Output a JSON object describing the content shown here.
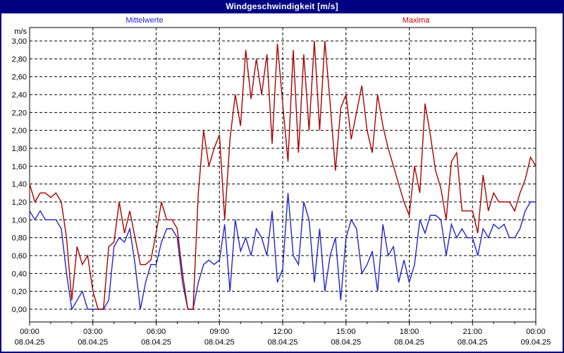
{
  "window": {
    "title": "Windgeschwindigkeit [m/s]"
  },
  "legend": {
    "items": [
      {
        "label": "Mittelwerte",
        "color": "#2323CC"
      },
      {
        "label": "Maxima",
        "color": "#C00000"
      }
    ]
  },
  "colors": {
    "titlebar_bg": "#000082",
    "titlebar_text": "#FFFFFF",
    "frame": "#000082",
    "grid": "#000000",
    "plot_border": "#000000",
    "background": "#FFFFFF"
  },
  "chart_data": {
    "type": "line",
    "title": "Windgeschwindigkeit [m/s]",
    "xlabel": "",
    "ylabel": "m/s",
    "ylim": [
      0.0,
      3.0
    ],
    "y_tick_step": 0.2,
    "y_tick_labels": [
      "3,00",
      "2,80",
      "2,60",
      "2,40",
      "2,20",
      "2,00",
      "1,80",
      "1,60",
      "1,40",
      "1,20",
      "1,00",
      "0,80",
      "0,60",
      "0,40",
      "0,20",
      "0,00"
    ],
    "x_range_hours": [
      0,
      24
    ],
    "x_major_tick_hours": 3,
    "x_minor_tick_hours": 1,
    "grid": "dashed",
    "legend_position": "top",
    "sample_interval_minutes": 15,
    "x_ticks": [
      {
        "time": "00:00",
        "date": "08.04.25"
      },
      {
        "time": "03:00",
        "date": "08.04.25"
      },
      {
        "time": "06:00",
        "date": "08.04.25"
      },
      {
        "time": "09:00",
        "date": "08.04.25"
      },
      {
        "time": "12:00",
        "date": "08.04.25"
      },
      {
        "time": "15:00",
        "date": "08.04.25"
      },
      {
        "time": "18:00",
        "date": "08.04.25"
      },
      {
        "time": "21:00",
        "date": "08.04.25"
      },
      {
        "time": "00:00",
        "date": "09.04.25"
      }
    ],
    "series": [
      {
        "name": "Mittelwerte",
        "color": "#2323CC",
        "values": [
          1.1,
          1.0,
          1.1,
          1.0,
          1.0,
          1.0,
          0.9,
          0.4,
          0.0,
          0.1,
          0.2,
          0.0,
          0.0,
          0.0,
          0.0,
          0.1,
          0.7,
          0.8,
          0.75,
          0.9,
          0.5,
          0.0,
          0.3,
          0.5,
          0.5,
          0.75,
          0.9,
          0.9,
          0.8,
          0.3,
          0.0,
          0.0,
          0.3,
          0.5,
          0.55,
          0.5,
          0.55,
          0.95,
          0.2,
          1.0,
          0.65,
          0.8,
          0.6,
          0.9,
          0.8,
          0.6,
          1.1,
          0.3,
          0.45,
          1.3,
          0.6,
          0.5,
          1.2,
          1.0,
          0.3,
          0.9,
          0.2,
          0.6,
          0.8,
          0.1,
          0.8,
          1.0,
          0.9,
          0.4,
          0.5,
          0.65,
          0.2,
          0.95,
          0.6,
          0.7,
          0.3,
          0.55,
          0.3,
          0.5,
          1.0,
          0.85,
          1.05,
          1.05,
          1.0,
          0.6,
          0.95,
          0.8,
          0.9,
          0.8,
          0.8,
          0.6,
          0.9,
          0.8,
          0.95,
          0.9,
          0.95,
          0.8,
          0.8,
          0.9,
          1.1,
          1.2,
          1.2
        ]
      },
      {
        "name": "Maxima",
        "color": "#AA0000",
        "values": [
          1.4,
          1.2,
          1.3,
          1.3,
          1.25,
          1.3,
          1.2,
          0.8,
          0.1,
          0.7,
          0.5,
          0.6,
          0.2,
          0.0,
          0.0,
          0.7,
          0.75,
          1.2,
          0.85,
          1.1,
          0.8,
          0.5,
          0.5,
          0.55,
          0.85,
          1.2,
          1.0,
          1.0,
          0.9,
          0.4,
          0.0,
          0.0,
          1.3,
          2.0,
          1.6,
          1.8,
          1.95,
          1.0,
          1.9,
          2.4,
          2.05,
          2.9,
          2.35,
          2.8,
          2.4,
          2.85,
          1.85,
          2.97,
          2.3,
          1.65,
          2.9,
          1.75,
          2.85,
          2.0,
          3.0,
          2.0,
          3.0,
          2.3,
          1.55,
          2.25,
          2.4,
          1.9,
          2.2,
          2.5,
          2.0,
          1.75,
          2.4,
          2.05,
          1.8,
          1.6,
          1.4,
          1.2,
          1.05,
          1.6,
          1.3,
          2.3,
          1.95,
          1.55,
          1.35,
          1.0,
          1.65,
          1.75,
          1.1,
          1.1,
          1.1,
          0.85,
          1.5,
          1.1,
          1.3,
          1.2,
          1.2,
          1.2,
          1.1,
          1.3,
          1.45,
          1.7,
          1.6
        ]
      }
    ]
  }
}
